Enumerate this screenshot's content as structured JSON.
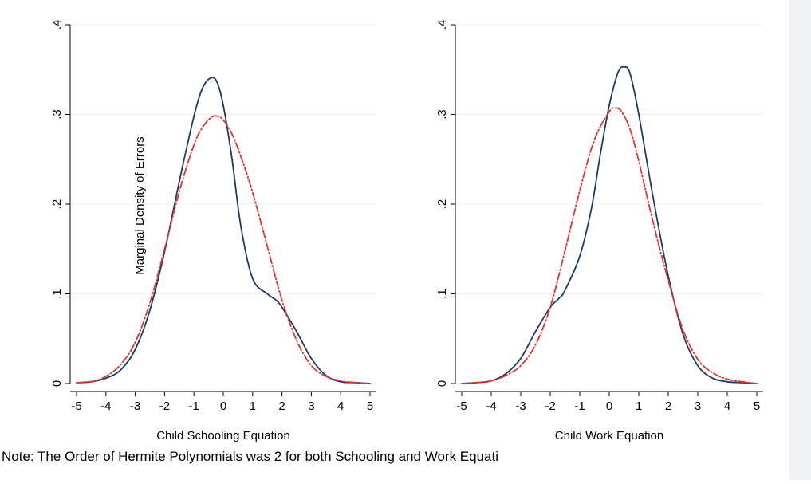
{
  "note": "Note: The Order of Hermite Polynomials was 2 for both Schooling and Work Equati",
  "colors": {
    "series_solid": "#1a3a6c",
    "series_dashed": "#e8312a",
    "grid": "#eaf2f3",
    "background": "#ffffff",
    "right_strip": "#f1f2f6"
  },
  "chart_data": [
    {
      "type": "line",
      "xlabel": "Child Schooling Equation",
      "ylabel": "Marginal Density of Errors",
      "xlim": [
        -5,
        5
      ],
      "ylim": [
        0,
        0.4
      ],
      "xticks": [
        -5,
        -4,
        -3,
        -2,
        -1,
        0,
        1,
        2,
        3,
        4,
        5
      ],
      "xtick_labels": [
        "-5",
        "-4",
        "-3",
        "-2",
        "-1",
        "0",
        "1",
        "2",
        "3",
        "4",
        "5"
      ],
      "yticks": [
        0,
        0.1,
        0.2,
        0.3,
        0.4
      ],
      "ytick_labels": [
        "0",
        ".1",
        ".2",
        ".3",
        ".4"
      ],
      "grid": true,
      "series": [
        {
          "style": "solid",
          "x": [
            -5,
            -4.5,
            -4,
            -3.5,
            -3,
            -2.5,
            -2,
            -1.5,
            -1,
            -0.7,
            -0.4,
            -0.2,
            0,
            0.3,
            0.6,
            1,
            1.5,
            1.8,
            2,
            2.5,
            3,
            3.5,
            4,
            4.5,
            5
          ],
          "y": [
            0.001,
            0.002,
            0.006,
            0.015,
            0.038,
            0.082,
            0.147,
            0.225,
            0.298,
            0.33,
            0.341,
            0.335,
            0.31,
            0.25,
            0.175,
            0.117,
            0.1,
            0.093,
            0.085,
            0.058,
            0.028,
            0.009,
            0.002,
            0.001,
            0
          ]
        },
        {
          "style": "dash-dot",
          "x": [
            -5,
            -4.5,
            -4,
            -3.5,
            -3,
            -2.5,
            -2,
            -1.5,
            -1,
            -0.7,
            -0.4,
            -0.2,
            0,
            0.3,
            0.6,
            1,
            1.5,
            2,
            2.5,
            3,
            3.5,
            4,
            4.5,
            5
          ],
          "y": [
            0.001,
            0.002,
            0.008,
            0.021,
            0.046,
            0.09,
            0.15,
            0.214,
            0.266,
            0.286,
            0.297,
            0.298,
            0.294,
            0.278,
            0.253,
            0.213,
            0.153,
            0.093,
            0.048,
            0.02,
            0.008,
            0.003,
            0.001,
            0
          ]
        }
      ]
    },
    {
      "type": "line",
      "xlabel": "Child Work Equation",
      "ylabel": "",
      "xlim": [
        -5,
        5
      ],
      "ylim": [
        0,
        0.4
      ],
      "xticks": [
        -5,
        -4,
        -3,
        -2,
        -1,
        0,
        1,
        2,
        3,
        4,
        5
      ],
      "xtick_labels": [
        "-5",
        "-4",
        "-3",
        "-2",
        "-1",
        "0",
        "1",
        "2",
        "3",
        "4",
        "5"
      ],
      "yticks": [
        0,
        0.1,
        0.2,
        0.3,
        0.4
      ],
      "ytick_labels": [
        "0",
        ".1",
        ".2",
        ".3",
        ".4"
      ],
      "grid": true,
      "series": [
        {
          "style": "solid",
          "x": [
            -5,
            -4.5,
            -4,
            -3.5,
            -3,
            -2.5,
            -2,
            -1.7,
            -1.5,
            -1,
            -0.6,
            -0.3,
            0,
            0.3,
            0.5,
            0.7,
            1,
            1.5,
            2,
            2.5,
            3,
            3.5,
            4,
            4.5,
            5
          ],
          "y": [
            0,
            0.001,
            0.003,
            0.011,
            0.028,
            0.058,
            0.085,
            0.095,
            0.104,
            0.142,
            0.196,
            0.256,
            0.31,
            0.347,
            0.353,
            0.346,
            0.3,
            0.205,
            0.12,
            0.055,
            0.02,
            0.006,
            0.002,
            0.001,
            0
          ]
        },
        {
          "style": "dash-dot",
          "x": [
            -5,
            -4.5,
            -4,
            -3.5,
            -3,
            -2.5,
            -2,
            -1.5,
            -1,
            -0.5,
            0,
            0.2,
            0.4,
            0.7,
            1,
            1.5,
            2,
            2.5,
            3,
            3.5,
            4,
            4.5,
            5
          ],
          "y": [
            0,
            0.001,
            0.003,
            0.009,
            0.02,
            0.043,
            0.085,
            0.148,
            0.215,
            0.272,
            0.303,
            0.307,
            0.304,
            0.284,
            0.248,
            0.178,
            0.115,
            0.06,
            0.027,
            0.012,
            0.005,
            0.002,
            0
          ]
        }
      ]
    }
  ]
}
